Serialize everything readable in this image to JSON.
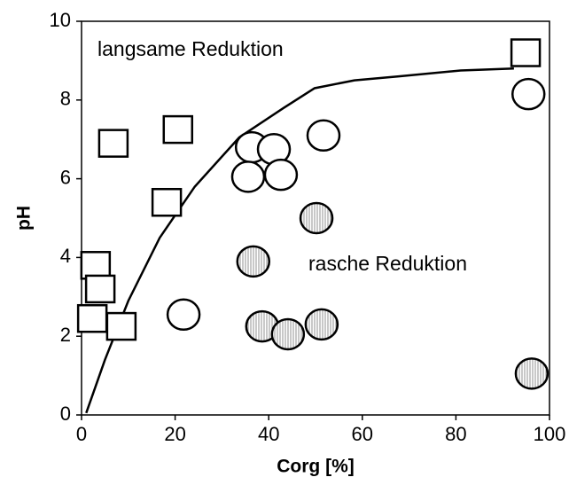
{
  "chart_data": {
    "type": "scatter",
    "x_label": "Corg [%]",
    "y_label": "pH",
    "annotations": [
      "langsame Reduktion",
      "rasche Reduktion"
    ],
    "xlim": [
      0,
      100
    ],
    "xticks": [
      0,
      20,
      40,
      60,
      80,
      100
    ],
    "ylim": [
      0,
      10
    ],
    "yticks": [
      0,
      2,
      4,
      6,
      8,
      10
    ],
    "color": "#000000",
    "series": [
      {
        "type": "scatter",
        "marker": "square",
        "fill": "white",
        "x": [
          6.8,
          20.6,
          18.2,
          3.0,
          4.0,
          2.3,
          8.5,
          94.9
        ],
        "values": [
          6.9,
          7.25,
          5.4,
          3.8,
          3.2,
          2.45,
          2.25,
          9.2
        ]
      },
      {
        "type": "scatter",
        "marker": "circle",
        "fill": "white",
        "x": [
          95.5,
          36.4,
          41.1,
          35.6,
          42.6,
          51.7,
          21.8
        ],
        "values": [
          8.15,
          6.8,
          6.75,
          6.05,
          6.1,
          7.1,
          2.55
        ]
      },
      {
        "type": "scatter",
        "marker": "circle",
        "fill": "hatched",
        "x": [
          50.2,
          36.7,
          38.6,
          44.1,
          51.3,
          96.2
        ],
        "values": [
          5.0,
          3.9,
          2.25,
          2.05,
          2.3,
          1.05
        ]
      },
      {
        "type": "line",
        "x": [
          1,
          5,
          10,
          16.7,
          24.2,
          33.7,
          43.2,
          49.8,
          58.3,
          67.8,
          81,
          92.4
        ],
        "values": [
          0.05,
          1.4,
          2.9,
          4.5,
          5.8,
          7.05,
          7.8,
          8.3,
          8.5,
          8.6,
          8.75,
          8.8
        ]
      }
    ]
  }
}
